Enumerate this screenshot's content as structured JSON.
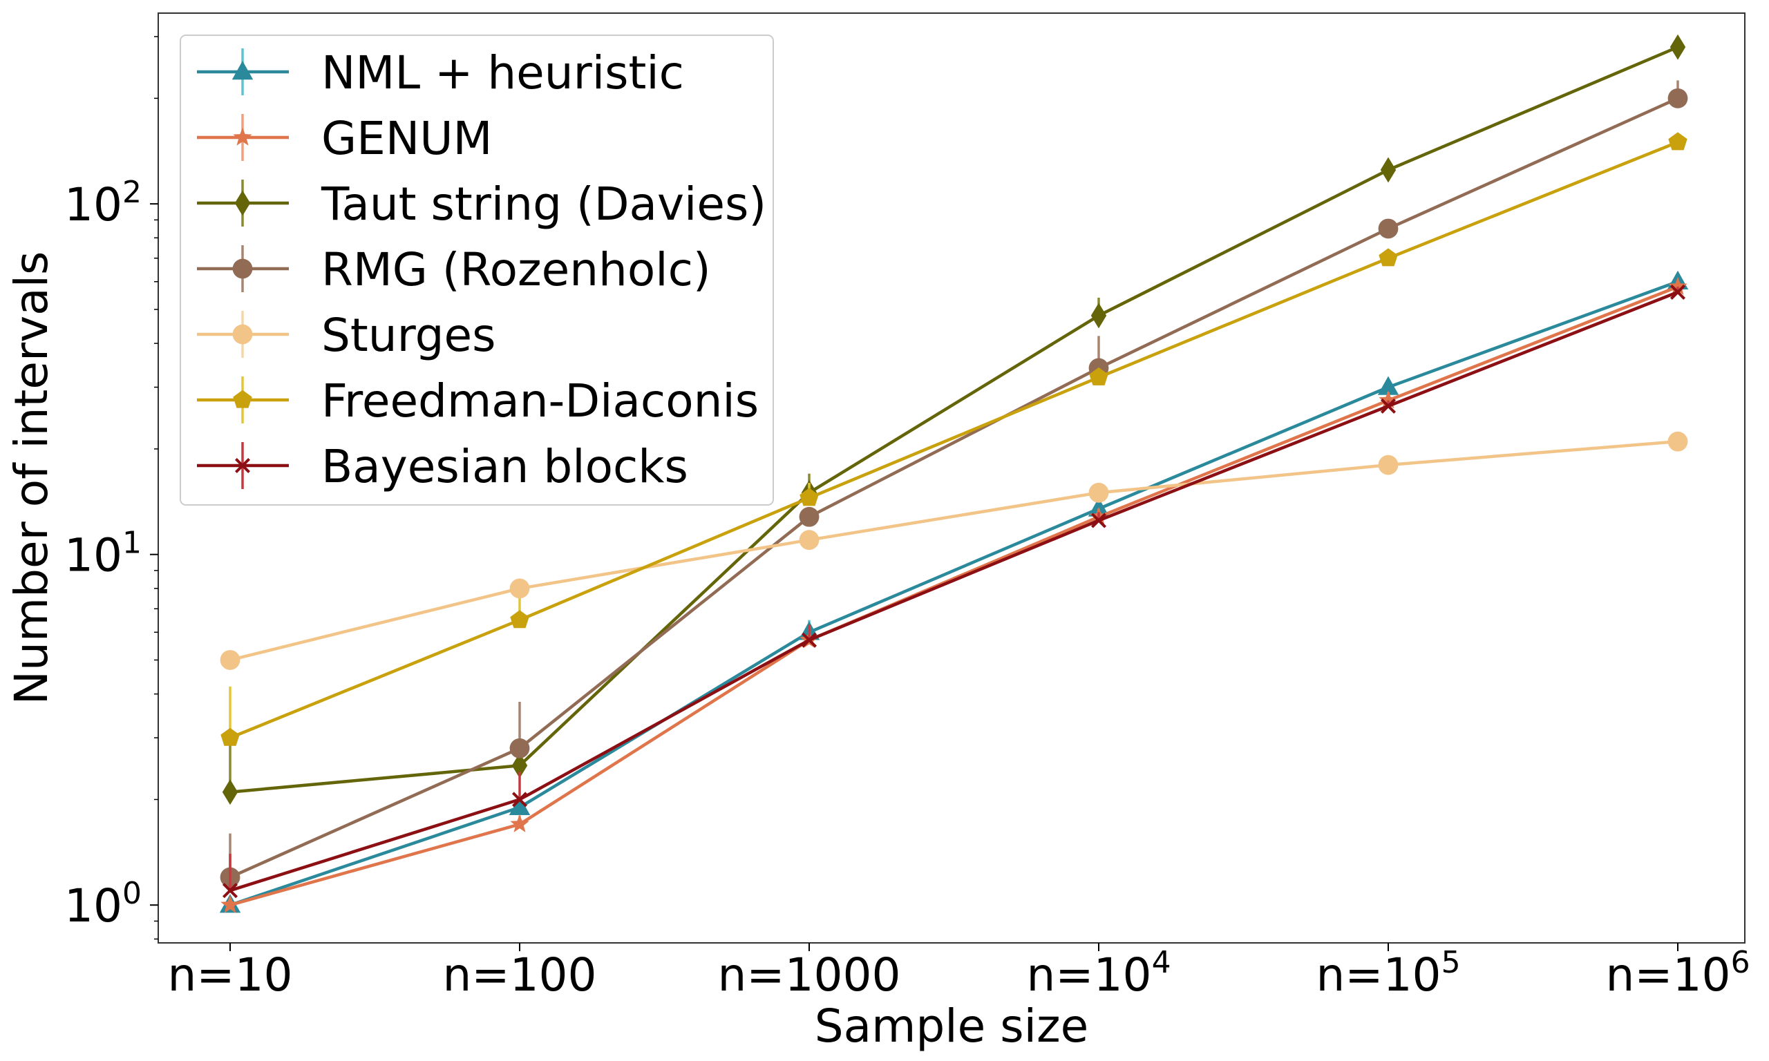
{
  "chart_data": {
    "type": "line",
    "title": "",
    "xlabel": "Sample size",
    "ylabel": "Number of intervals",
    "yscale": "log",
    "ylim": [
      0.78,
      350
    ],
    "legend_position": "top-left",
    "grid": false,
    "categories": [
      {
        "base": "n=10",
        "sup": ""
      },
      {
        "base": "n=100",
        "sup": ""
      },
      {
        "base": "n=1000",
        "sup": ""
      },
      {
        "base": "n=10",
        "sup": "4"
      },
      {
        "base": "n=10",
        "sup": "5"
      },
      {
        "base": "n=10",
        "sup": "6"
      }
    ],
    "y_ticks": [
      {
        "value": 1,
        "base": "10",
        "sup": "0"
      },
      {
        "value": 10,
        "base": "10",
        "sup": "1"
      },
      {
        "value": 100,
        "base": "10",
        "sup": "2"
      }
    ],
    "series": [
      {
        "name": "NML + heuristic",
        "color": "#2a8a9c",
        "errcolor": "#5fc3d3",
        "marker": "triangle",
        "values": [
          1.0,
          1.9,
          6.0,
          13.5,
          30,
          60
        ],
        "err_high": [
          1.0,
          2.0,
          6.5,
          14.2,
          31,
          62
        ]
      },
      {
        "name": "GENUM",
        "color": "#e0744a",
        "errcolor": "#f0a080",
        "marker": "star",
        "values": [
          1.0,
          1.7,
          5.7,
          12.8,
          27.5,
          58
        ],
        "err_high": [
          1.0,
          1.8,
          6.2,
          13.5,
          29,
          60
        ]
      },
      {
        "name": "Taut string (Davies)",
        "color": "#646408",
        "errcolor": "#8a8a30",
        "marker": "diamond",
        "values": [
          2.1,
          2.5,
          15,
          48,
          125,
          280
        ],
        "err_high": [
          3.0,
          2.7,
          17,
          54,
          130,
          290
        ]
      },
      {
        "name": "RMG (Rozenholc)",
        "color": "#926b55",
        "errcolor": "#a98571",
        "marker": "circle",
        "values": [
          1.2,
          2.8,
          12.8,
          34,
          85,
          200
        ],
        "err_high": [
          1.6,
          3.8,
          13.5,
          42,
          88,
          225
        ]
      },
      {
        "name": "Sturges",
        "color": "#f2c487",
        "errcolor": "#f6d6a8",
        "marker": "circle",
        "values": [
          5,
          8,
          11,
          15,
          18,
          21
        ],
        "err_high": [
          5,
          8,
          11,
          15,
          18,
          21
        ]
      },
      {
        "name": "Freedman-Diaconis",
        "color": "#c9a10c",
        "errcolor": "#e3c53a",
        "marker": "pentagon",
        "values": [
          3.0,
          6.5,
          14.5,
          32,
          70,
          150
        ],
        "err_high": [
          4.2,
          7.5,
          16,
          33,
          72,
          153
        ]
      },
      {
        "name": "Bayesian blocks",
        "color": "#8c0f14",
        "errcolor": "#c43a3f",
        "marker": "x",
        "values": [
          1.1,
          2.0,
          5.7,
          12.5,
          26.5,
          56
        ],
        "err_high": [
          1.4,
          2.4,
          6.3,
          13.2,
          27.5,
          58
        ]
      }
    ]
  }
}
